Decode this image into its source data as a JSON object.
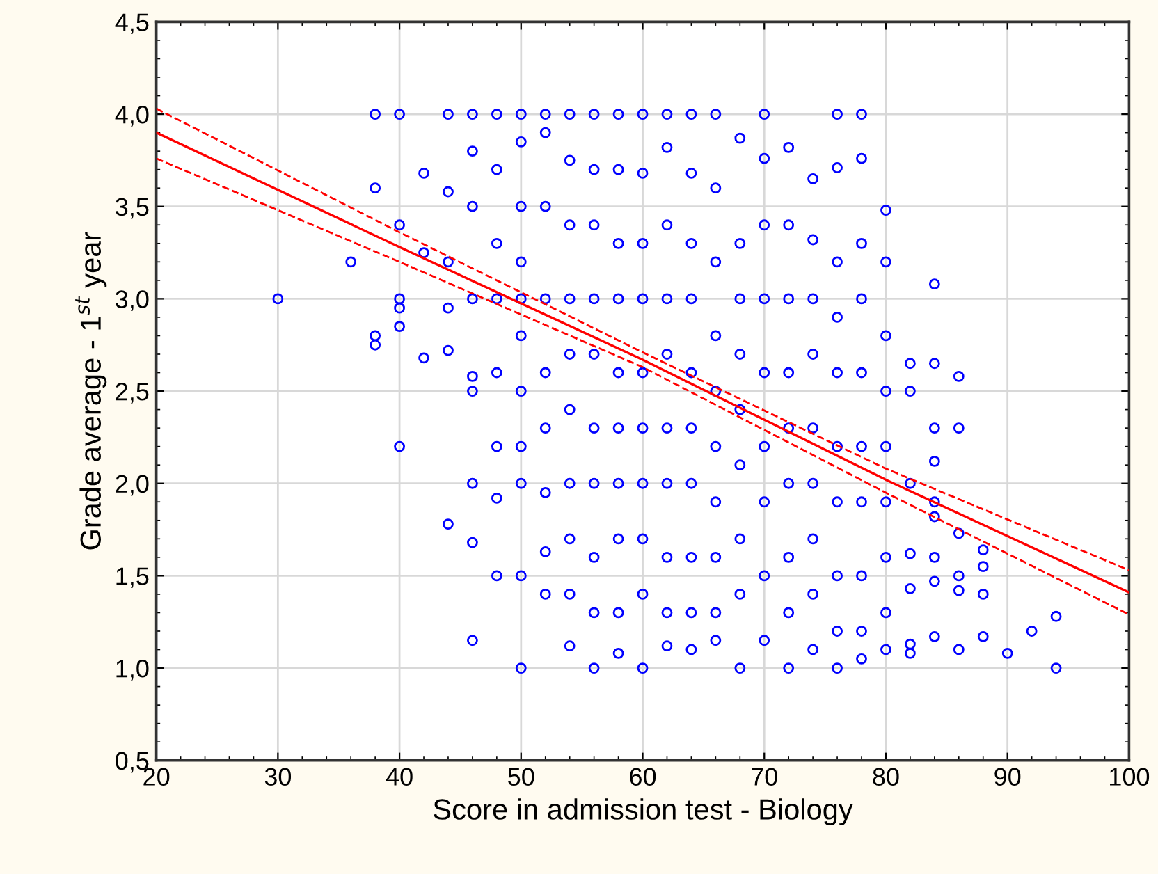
{
  "chart_data": {
    "type": "scatter",
    "xlabel": "Score in admission test - Biology",
    "ylabel": "Grade average - 1$^{st}$ year",
    "xlim": [
      20,
      100
    ],
    "ylim": [
      0.5,
      4.5
    ],
    "xticks": [
      20,
      30,
      40,
      50,
      60,
      70,
      80,
      90,
      100
    ],
    "yticks": [
      {
        "value": 0.5,
        "label": "0,5"
      },
      {
        "value": 1.0,
        "label": "1,0"
      },
      {
        "value": 1.5,
        "label": "1,5"
      },
      {
        "value": 2.0,
        "label": "2,0"
      },
      {
        "value": 2.5,
        "label": "2,5"
      },
      {
        "value": 3.0,
        "label": "3,0"
      },
      {
        "value": 3.5,
        "label": "3,5"
      },
      {
        "value": 4.0,
        "label": "4,0"
      },
      {
        "value": 4.5,
        "label": "4,5"
      }
    ],
    "grid": true,
    "legend": false,
    "series": [
      {
        "color": "#0000ff",
        "marker": "circle",
        "x": [
          30,
          36,
          38,
          38,
          38,
          38,
          40,
          40,
          40,
          40,
          40,
          40,
          42,
          42,
          42,
          44,
          44,
          44,
          44,
          44,
          44,
          46,
          46,
          46,
          46,
          46,
          46,
          46,
          46,
          46,
          48,
          48,
          48,
          48,
          48,
          48,
          48,
          48,
          50,
          50,
          50,
          50,
          50,
          50,
          50,
          50,
          50,
          50,
          50,
          52,
          52,
          52,
          52,
          52,
          52,
          52,
          52,
          52,
          54,
          54,
          54,
          54,
          54,
          54,
          54,
          54,
          54,
          54,
          56,
          56,
          56,
          56,
          56,
          56,
          56,
          56,
          56,
          56,
          58,
          58,
          58,
          58,
          58,
          58,
          58,
          58,
          58,
          58,
          60,
          60,
          60,
          60,
          60,
          60,
          60,
          60,
          60,
          60,
          62,
          62,
          62,
          62,
          62,
          62,
          62,
          62,
          62,
          62,
          64,
          64,
          64,
          64,
          64,
          64,
          64,
          64,
          64,
          64,
          66,
          66,
          66,
          66,
          66,
          66,
          66,
          66,
          66,
          66,
          68,
          68,
          68,
          68,
          68,
          68,
          68,
          68,
          68,
          70,
          70,
          70,
          70,
          70,
          70,
          70,
          70,
          70,
          72,
          72,
          72,
          72,
          72,
          72,
          72,
          72,
          72,
          74,
          74,
          74,
          74,
          74,
          74,
          74,
          74,
          74,
          76,
          76,
          76,
          76,
          76,
          76,
          76,
          76,
          76,
          76,
          78,
          78,
          78,
          78,
          78,
          78,
          78,
          78,
          78,
          78,
          80,
          80,
          80,
          80,
          80,
          80,
          80,
          80,
          80,
          82,
          82,
          82,
          82,
          82,
          82,
          82,
          84,
          84,
          84,
          84,
          84,
          84,
          84,
          84,
          84,
          86,
          86,
          86,
          86,
          86,
          86,
          88,
          88,
          88,
          88,
          90,
          92,
          94,
          94
        ],
        "values": [
          3.0,
          3.2,
          4.0,
          3.6,
          2.8,
          2.75,
          4.0,
          3.4,
          3.0,
          2.95,
          2.85,
          2.2,
          3.68,
          3.25,
          2.68,
          4.0,
          3.58,
          3.2,
          2.95,
          2.72,
          1.78,
          4.0,
          3.8,
          3.5,
          3.0,
          2.58,
          2.5,
          2.0,
          1.68,
          1.15,
          4.0,
          3.7,
          3.3,
          3.0,
          2.6,
          2.2,
          1.92,
          1.5,
          4.0,
          3.85,
          3.5,
          3.2,
          3.0,
          2.8,
          2.5,
          2.2,
          2.0,
          1.5,
          1.0,
          4.0,
          3.9,
          3.5,
          3.0,
          2.6,
          2.3,
          1.95,
          1.63,
          1.4,
          4.0,
          3.75,
          3.4,
          3.0,
          2.7,
          2.4,
          2.0,
          1.7,
          1.4,
          1.12,
          4.0,
          3.7,
          3.4,
          3.0,
          2.7,
          2.3,
          2.0,
          1.6,
          1.3,
          1.0,
          4.0,
          3.7,
          3.3,
          3.0,
          2.6,
          2.3,
          2.0,
          1.7,
          1.3,
          1.08,
          4.0,
          3.68,
          3.3,
          3.0,
          2.6,
          2.3,
          2.0,
          1.7,
          1.4,
          1.0,
          4.0,
          3.82,
          3.4,
          3.0,
          2.7,
          2.3,
          2.0,
          1.6,
          1.3,
          1.12,
          4.0,
          3.68,
          3.3,
          3.0,
          2.6,
          2.3,
          2.0,
          1.6,
          1.3,
          1.1,
          4.0,
          3.6,
          3.2,
          2.8,
          2.5,
          2.2,
          1.9,
          1.6,
          1.3,
          1.15,
          3.87,
          3.3,
          3.0,
          2.7,
          2.4,
          2.1,
          1.7,
          1.4,
          1.0,
          4.0,
          3.76,
          3.4,
          3.0,
          2.6,
          2.2,
          1.9,
          1.5,
          1.15,
          3.82,
          3.4,
          3.0,
          2.6,
          2.3,
          2.0,
          1.6,
          1.3,
          1.0,
          3.65,
          3.32,
          3.0,
          2.7,
          2.3,
          2.0,
          1.7,
          1.4,
          1.1,
          4.0,
          3.71,
          3.2,
          2.9,
          2.6,
          2.2,
          1.9,
          1.5,
          1.2,
          1.0,
          4.0,
          3.76,
          3.3,
          3.0,
          2.6,
          2.2,
          1.9,
          1.5,
          1.2,
          1.05,
          3.48,
          3.2,
          2.8,
          2.5,
          2.2,
          1.9,
          1.6,
          1.3,
          1.1,
          2.65,
          2.5,
          2.0,
          1.62,
          1.43,
          1.13,
          1.08,
          3.08,
          2.65,
          2.3,
          2.12,
          1.9,
          1.82,
          1.6,
          1.47,
          1.17,
          2.58,
          2.3,
          1.73,
          1.5,
          1.42,
          1.1,
          1.64,
          1.55,
          1.4,
          1.17,
          1.08,
          1.2,
          1.28,
          1.0
        ]
      },
      {
        "type": "line",
        "color": "#ff0000",
        "marker": "none",
        "line_style": "solid",
        "x": [
          20,
          40,
          60,
          80,
          100
        ],
        "values": [
          3.9,
          3.28,
          2.67,
          2.02,
          1.41
        ]
      },
      {
        "type": "line",
        "color": "#ff0000",
        "marker": "none",
        "line_style": "dashed",
        "x": [
          20,
          40,
          60,
          80,
          100
        ],
        "values": [
          3.76,
          3.2,
          2.63,
          1.95,
          1.29
        ]
      },
      {
        "type": "line",
        "color": "#ff0000",
        "marker": "none",
        "line_style": "dashed",
        "x": [
          20,
          40,
          60,
          80,
          100
        ],
        "values": [
          4.03,
          3.36,
          2.71,
          2.08,
          1.53
        ]
      }
    ]
  }
}
